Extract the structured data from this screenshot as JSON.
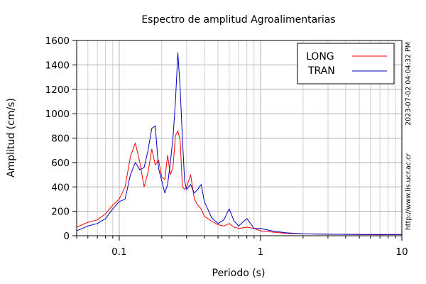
{
  "chart_data": {
    "type": "line",
    "title": "Espectro de amplitud Agroalimentarias",
    "xlabel": "Periodo (s)",
    "ylabel": "Amplitud (cm/s)",
    "x_scale": "log",
    "xlim": [
      0.05,
      10
    ],
    "ylim": [
      0,
      1600
    ],
    "x_ticks": [
      {
        "value": 0.1,
        "label": "0.1"
      },
      {
        "value": 1,
        "label": "1"
      },
      {
        "value": 10,
        "label": "10"
      }
    ],
    "y_ticks": [
      0,
      200,
      400,
      600,
      800,
      1000,
      1200,
      1400,
      1600
    ],
    "grid": true,
    "legend_position": "top-right",
    "series": [
      {
        "name": "LONG",
        "color": "#ff0000",
        "x": [
          0.05,
          0.06,
          0.07,
          0.08,
          0.09,
          0.1,
          0.11,
          0.12,
          0.13,
          0.14,
          0.15,
          0.16,
          0.17,
          0.18,
          0.19,
          0.2,
          0.21,
          0.22,
          0.23,
          0.24,
          0.25,
          0.26,
          0.27,
          0.28,
          0.29,
          0.3,
          0.32,
          0.34,
          0.36,
          0.38,
          0.4,
          0.45,
          0.5,
          0.55,
          0.6,
          0.65,
          0.7,
          0.8,
          0.9,
          1.0,
          1.2,
          1.5,
          2.0,
          3.0,
          5.0,
          7.0,
          10.0
        ],
        "y": [
          70,
          110,
          130,
          180,
          250,
          300,
          400,
          650,
          760,
          600,
          400,
          520,
          710,
          580,
          620,
          480,
          460,
          660,
          500,
          560,
          820,
          860,
          780,
          400,
          380,
          400,
          500,
          300,
          250,
          220,
          160,
          120,
          90,
          80,
          100,
          70,
          60,
          70,
          60,
          40,
          30,
          20,
          15,
          12,
          10,
          8,
          10
        ]
      },
      {
        "name": "TRAN",
        "color": "#0000c0",
        "x": [
          0.05,
          0.06,
          0.07,
          0.08,
          0.09,
          0.1,
          0.11,
          0.12,
          0.13,
          0.14,
          0.15,
          0.16,
          0.17,
          0.18,
          0.19,
          0.2,
          0.21,
          0.22,
          0.23,
          0.24,
          0.25,
          0.26,
          0.27,
          0.28,
          0.29,
          0.3,
          0.32,
          0.34,
          0.36,
          0.38,
          0.4,
          0.45,
          0.5,
          0.55,
          0.6,
          0.65,
          0.7,
          0.8,
          0.9,
          1.0,
          1.2,
          1.5,
          2.0,
          3.0,
          5.0,
          7.0,
          10.0
        ],
        "y": [
          40,
          80,
          100,
          140,
          220,
          280,
          300,
          500,
          600,
          540,
          560,
          700,
          880,
          900,
          550,
          450,
          350,
          420,
          600,
          800,
          1100,
          1500,
          1200,
          800,
          450,
          380,
          420,
          350,
          380,
          420,
          280,
          150,
          100,
          130,
          220,
          120,
          80,
          140,
          60,
          60,
          40,
          25,
          15,
          12,
          10,
          10,
          10
        ]
      }
    ]
  },
  "watermark": {
    "timestamp": "2023-07-02 04:04:32 PM",
    "url": "http://www.lis.ucr.ac.cr"
  }
}
